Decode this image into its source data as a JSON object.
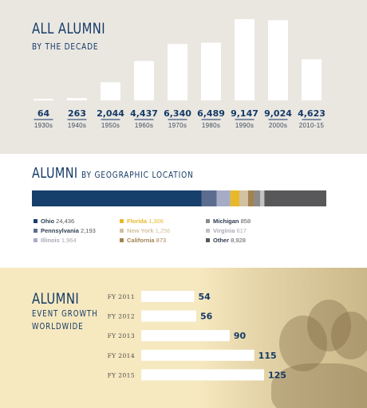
{
  "decade": {
    "title": "ALL ALUMNI",
    "subtitle": "BY THE DECADE"
  },
  "geo": {
    "title_big": "ALUMNI",
    "title_small": "BY GEOGRAPHIC LOCATION"
  },
  "events": {
    "title": "ALUMNI",
    "subtitle_lines": [
      "EVENT GROWTH",
      "WORLDWIDE"
    ]
  },
  "chart_data": [
    {
      "type": "bar",
      "title": "ALL ALUMNI",
      "subtitle": "BY THE DECADE",
      "categories": [
        "1930s",
        "1940s",
        "1950s",
        "1960s",
        "1970s",
        "1980s",
        "1990s",
        "2000s",
        "2010-15"
      ],
      "values": [
        64,
        263,
        2044,
        4437,
        6340,
        6489,
        9147,
        9024,
        4623
      ],
      "value_labels": [
        "64",
        "263",
        "2,044",
        "4,437",
        "6,340",
        "6,489",
        "9,147",
        "9,024",
        "4,623"
      ],
      "ylim": [
        0,
        9147
      ],
      "bar_color": "#ffffff"
    },
    {
      "type": "bar",
      "orientation": "stacked-horizontal",
      "title": "ALUMNI BY GEOGRAPHIC LOCATION",
      "series": [
        {
          "name": "Ohio",
          "value": 24436,
          "label": "24,436",
          "color": "#173f6b"
        },
        {
          "name": "Pennsylvania",
          "value": 2193,
          "label": "2,193",
          "color": "#5b6c8f"
        },
        {
          "name": "Illinois",
          "value": 1964,
          "label": "1,964",
          "color": "#a6acc6"
        },
        {
          "name": "Florida",
          "value": 1306,
          "label": "1,306",
          "color": "#e8b82a"
        },
        {
          "name": "New York",
          "value": 1256,
          "label": "1,256",
          "color": "#d1c1a0"
        },
        {
          "name": "California",
          "value": 873,
          "label": "873",
          "color": "#a2824e"
        },
        {
          "name": "Michigan",
          "value": 858,
          "label": "858",
          "color": "#8a8a8a"
        },
        {
          "name": "Virginia",
          "value": 617,
          "label": "617",
          "color": "#c2c2c2"
        },
        {
          "name": "Other",
          "value": 8928,
          "label": "8,928",
          "color": "#58585a"
        }
      ]
    },
    {
      "type": "bar",
      "orientation": "horizontal",
      "title": "ALUMNI EVENT GROWTH WORLDWIDE",
      "categories": [
        "FY 2011",
        "FY 2012",
        "FY 2013",
        "FY 2014",
        "FY 2015"
      ],
      "values": [
        54,
        56,
        90,
        115,
        125
      ],
      "xlim": [
        0,
        125
      ],
      "bar_color": "#ffffff"
    }
  ]
}
